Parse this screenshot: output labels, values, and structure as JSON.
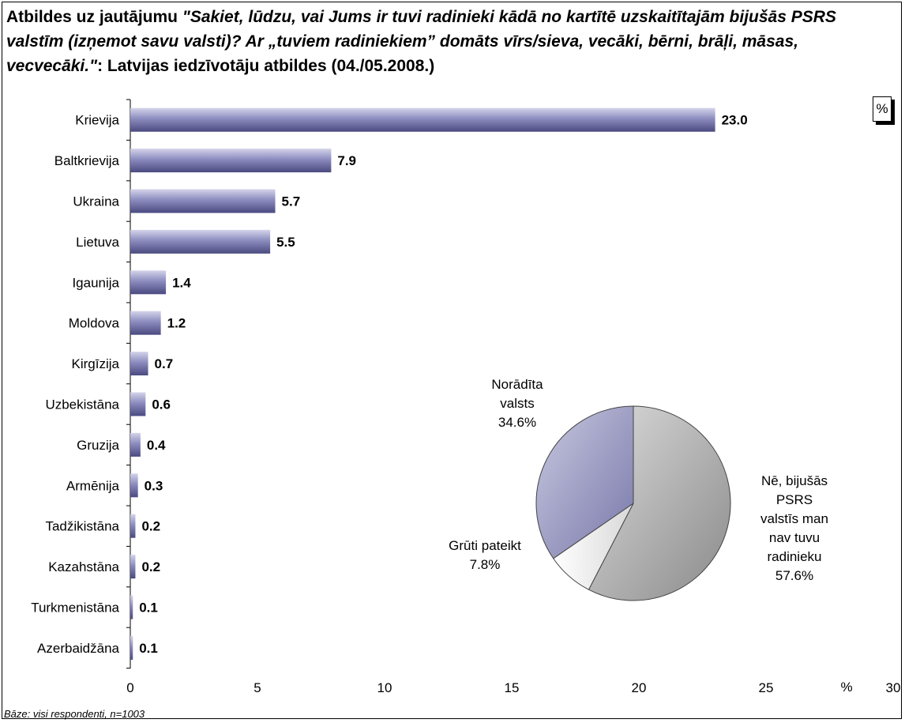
{
  "title": {
    "prefix": "Atbildes uz jautājumu ",
    "question": "\"Sakiet, lūdzu, vai Jums ir tuvi radinieki kādā no kartītē uzskaitītajām bijušās PSRS valstīm (izņemot savu valsti)? Ar „tuviem radiniekiem” domāts vīrs/sieva, vecāki, bērni, brāļi, māsas, vecvecāki.\"",
    "suffix": ": Latvijas iedzīvotāju atbildes (04./05.2008.)"
  },
  "unit_box": "%",
  "footnote": "Bāze: visi respondenti, n=1003",
  "chart_data": [
    {
      "type": "bar",
      "orientation": "horizontal",
      "categories": [
        "Krievija",
        "Baltkrievija",
        "Ukraina",
        "Lietuva",
        "Igaunija",
        "Moldova",
        "Kirgīzija",
        "Uzbekistāna",
        "Gruzija",
        "Armēnija",
        "Tadžikistāna",
        "Kazahstāna",
        "Turkmenistāna",
        "Azerbaidžāna"
      ],
      "values": [
        23.0,
        7.9,
        5.7,
        5.5,
        1.4,
        1.2,
        0.7,
        0.6,
        0.4,
        0.3,
        0.2,
        0.2,
        0.1,
        0.1
      ],
      "value_labels": [
        "23.0",
        "7.9",
        "5.7",
        "5.5",
        "1.4",
        "1.2",
        "0.7",
        "0.6",
        "0.4",
        "0.3",
        "0.2",
        "0.2",
        "0.1",
        "0.1"
      ],
      "xlim": [
        0,
        30
      ],
      "xticks": [
        "0",
        "5",
        "10",
        "15",
        "20",
        "25",
        "30"
      ],
      "xlabel": "%",
      "bar_color": "#8c8cbf",
      "grid": false
    },
    {
      "type": "pie",
      "slices": [
        {
          "label_lines": [
            "Nē, bijušās",
            "PSRS",
            "valstīs man",
            "nav tuvu",
            "radinieku",
            "57.6%"
          ],
          "value": 57.6,
          "color": "#b5b5b5"
        },
        {
          "label_lines": [
            "Grūti pateikt",
            "7.8%"
          ],
          "value": 7.8,
          "color": "#ececec"
        },
        {
          "label_lines": [
            "Norādīta",
            "valsts",
            "34.6%"
          ],
          "value": 34.6,
          "color": "#a8a8cc"
        }
      ]
    }
  ]
}
